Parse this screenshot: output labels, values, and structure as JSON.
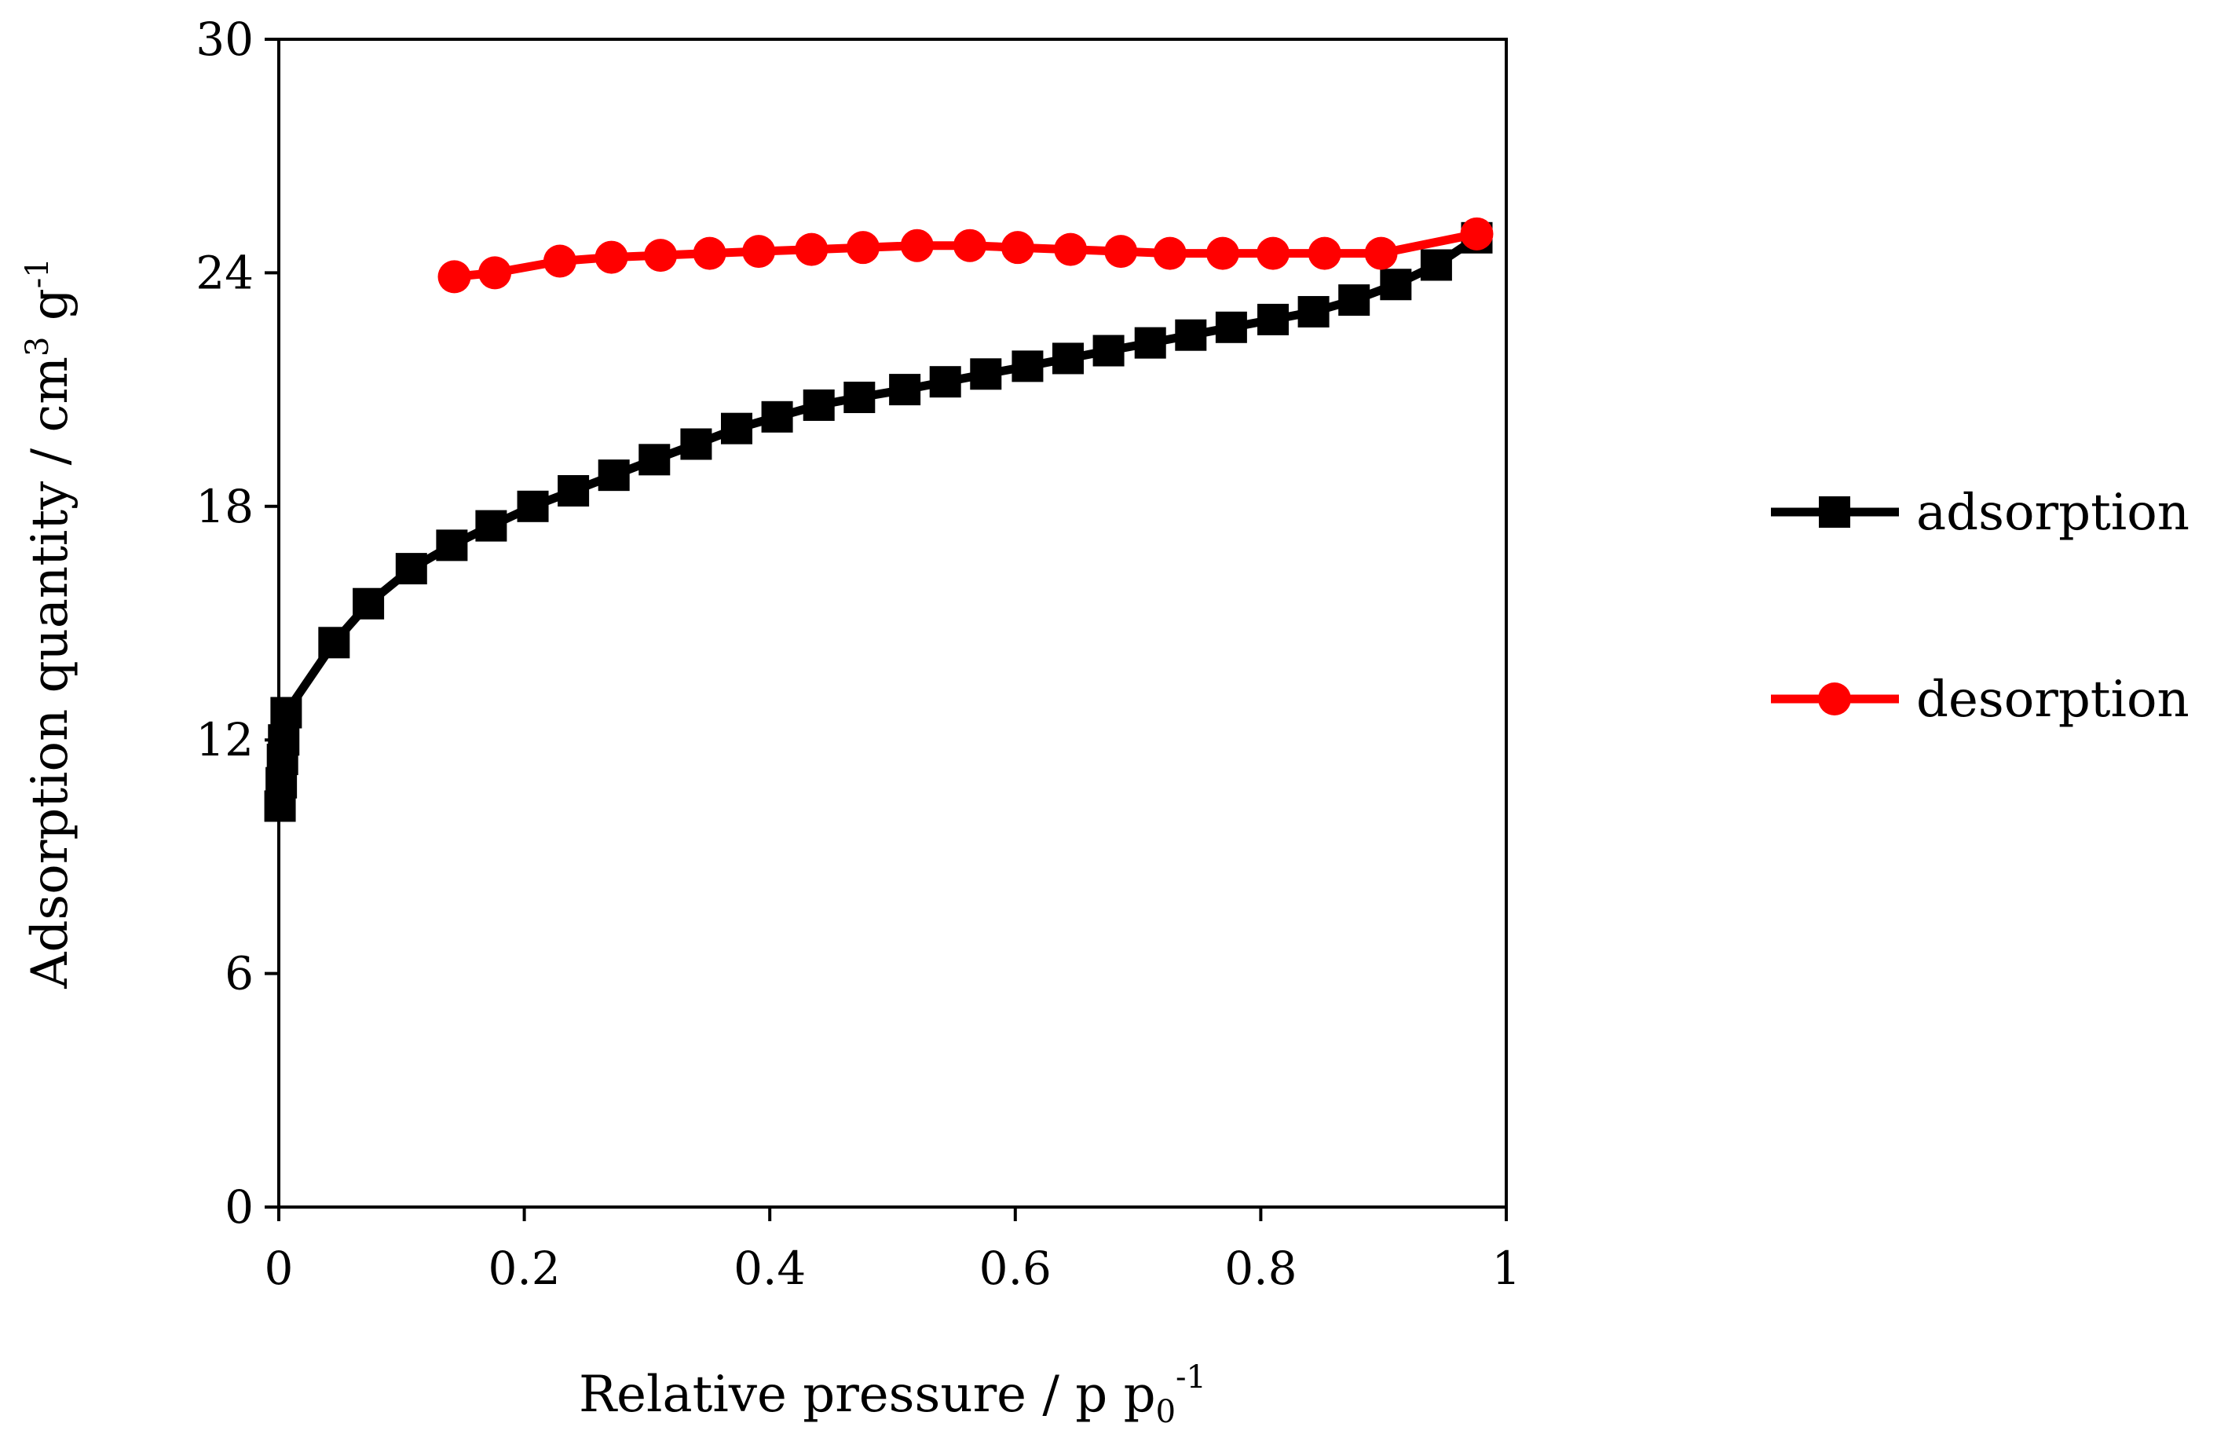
{
  "chart_data": {
    "type": "line",
    "title": "",
    "xlabel": {
      "main": "Relative pressure / p p",
      "sub": "0",
      "sup": "-1"
    },
    "ylabel": {
      "main": "Adsorption quantity / cm",
      "sup1": "3",
      "mid": " g",
      "sup2": "-1"
    },
    "xlim": [
      0,
      1
    ],
    "ylim": [
      0,
      30
    ],
    "xticks": [
      0,
      0.2,
      0.4,
      0.6,
      0.8,
      1
    ],
    "xtick_labels": [
      "0",
      "0.2",
      "0.4",
      "0.6",
      "0.8",
      "1"
    ],
    "yticks": [
      0,
      6,
      12,
      18,
      24,
      30
    ],
    "ytick_labels": [
      "0",
      "6",
      "12",
      "18",
      "24",
      "30"
    ],
    "grid": false,
    "legend_position": "right",
    "series": [
      {
        "name": "adsorption",
        "color": "#000000",
        "marker": "square",
        "x": [
          0.001,
          0.002,
          0.003,
          0.004,
          0.006,
          0.045,
          0.073,
          0.108,
          0.141,
          0.173,
          0.207,
          0.24,
          0.273,
          0.306,
          0.34,
          0.373,
          0.406,
          0.44,
          0.473,
          0.51,
          0.543,
          0.576,
          0.61,
          0.643,
          0.676,
          0.71,
          0.743,
          0.776,
          0.81,
          0.843,
          0.876,
          0.91,
          0.943,
          0.976
        ],
        "y": [
          10.3,
          10.9,
          11.5,
          12.0,
          12.7,
          14.5,
          15.5,
          16.4,
          17.0,
          17.5,
          18.0,
          18.4,
          18.8,
          19.2,
          19.6,
          20.0,
          20.3,
          20.6,
          20.8,
          21.0,
          21.2,
          21.4,
          21.6,
          21.8,
          22.0,
          22.2,
          22.4,
          22.6,
          22.8,
          23.0,
          23.3,
          23.7,
          24.2,
          24.9
        ]
      },
      {
        "name": "desorption",
        "color": "#ff0000",
        "marker": "circle",
        "x": [
          0.143,
          0.176,
          0.229,
          0.271,
          0.311,
          0.351,
          0.391,
          0.434,
          0.476,
          0.52,
          0.563,
          0.602,
          0.645,
          0.686,
          0.726,
          0.769,
          0.81,
          0.852,
          0.898,
          0.976
        ],
        "y": [
          23.9,
          24.0,
          24.3,
          24.4,
          24.45,
          24.5,
          24.55,
          24.6,
          24.65,
          24.7,
          24.7,
          24.65,
          24.6,
          24.55,
          24.5,
          24.5,
          24.5,
          24.5,
          24.5,
          25.0
        ]
      }
    ]
  }
}
